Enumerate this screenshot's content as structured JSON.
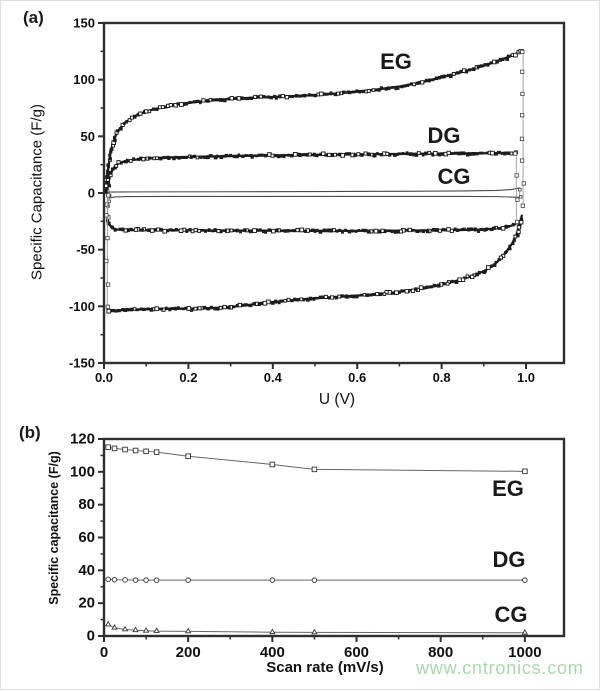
{
  "panel_a": {
    "tag": "(a)",
    "ylabel": "Specific Capacitance (F/g)",
    "xlabel": "U (V)"
  },
  "panel_b": {
    "tag": "(b)",
    "ylabel": "Specific capacitance (F/g)",
    "xlabel": "Scan rate (mV/s)"
  },
  "watermark": {
    "text": "www.cntronics.com",
    "color": "#a9d7b0"
  },
  "chart_data": [
    {
      "type": "line",
      "panel": "a",
      "xlabel": "U (V)",
      "ylabel": "Specific Capacitance (F/g)",
      "xlim": [
        0,
        1.09
      ],
      "ylim": [
        -150,
        150
      ],
      "xticks": [
        0.0,
        0.2,
        0.4,
        0.6,
        0.8,
        1.0
      ],
      "xtick_labels": [
        "0.0",
        "0.2",
        "0.4",
        "0.6",
        "0.8",
        "1.0"
      ],
      "xminor": [
        0.1,
        0.3,
        0.5,
        0.7,
        0.9
      ],
      "yticks": [
        -150,
        -100,
        -50,
        0,
        50,
        100,
        150
      ],
      "ytick_labels": [
        "-150",
        "-100",
        "-50",
        "0",
        "50",
        "100",
        "150"
      ],
      "yminor": [
        -125,
        -75,
        -25,
        25,
        75,
        125
      ],
      "series": [
        {
          "name": "CG",
          "style": "thin",
          "upper": [
            [
              0.01,
              0.8
            ],
            [
              0.1,
              1
            ],
            [
              0.3,
              1.1
            ],
            [
              0.5,
              1.3
            ],
            [
              0.7,
              1.5
            ],
            [
              0.85,
              1.8
            ],
            [
              0.93,
              2.3
            ],
            [
              0.965,
              3
            ],
            [
              0.985,
              4.5
            ]
          ],
          "lower": [
            [
              0.983,
              -3.8
            ],
            [
              0.93,
              -3.2
            ],
            [
              0.85,
              -3
            ],
            [
              0.7,
              -3
            ],
            [
              0.5,
              -3
            ],
            [
              0.3,
              -3
            ],
            [
              0.15,
              -3
            ],
            [
              0.06,
              -3.1
            ],
            [
              0.025,
              -3.5
            ],
            [
              0.013,
              -4.5
            ]
          ],
          "right_connector": {
            "x": 0.985,
            "values": [
              3,
              -3
            ]
          },
          "left_connector": {
            "x": 0.012,
            "values": [
              -2,
              -8,
              -12
            ]
          }
        },
        {
          "name": "DG",
          "style": "chain",
          "upper": [
            [
              0.008,
              4
            ],
            [
              0.011,
              10
            ],
            [
              0.015,
              16
            ],
            [
              0.02,
              20.5
            ],
            [
              0.027,
              24
            ],
            [
              0.036,
              26.5
            ],
            [
              0.05,
              28
            ],
            [
              0.07,
              29.2
            ],
            [
              0.09,
              30
            ],
            [
              0.12,
              30.8
            ],
            [
              0.16,
              31.4
            ],
            [
              0.2,
              31.8
            ],
            [
              0.25,
              32.2
            ],
            [
              0.3,
              32.6
            ],
            [
              0.36,
              33
            ],
            [
              0.42,
              33.3
            ],
            [
              0.5,
              33.7
            ],
            [
              0.58,
              34
            ],
            [
              0.66,
              34.3
            ],
            [
              0.74,
              34.6
            ],
            [
              0.82,
              34.8
            ],
            [
              0.9,
              35.1
            ],
            [
              0.95,
              35.3
            ],
            [
              0.977,
              35.5
            ]
          ],
          "lower": [
            [
              0.975,
              -27.5
            ],
            [
              0.96,
              -29.5
            ],
            [
              0.945,
              -30.7
            ],
            [
              0.92,
              -31.6
            ],
            [
              0.89,
              -32.2
            ],
            [
              0.85,
              -32.6
            ],
            [
              0.8,
              -32.9
            ],
            [
              0.74,
              -33.1
            ],
            [
              0.66,
              -33.3
            ],
            [
              0.58,
              -33.4
            ],
            [
              0.5,
              -33.4
            ],
            [
              0.42,
              -33.3
            ],
            [
              0.34,
              -33.2
            ],
            [
              0.26,
              -33.1
            ],
            [
              0.19,
              -33
            ],
            [
              0.13,
              -32.9
            ],
            [
              0.08,
              -32.8
            ],
            [
              0.05,
              -32.6
            ],
            [
              0.03,
              -32.2
            ],
            [
              0.02,
              -31
            ],
            [
              0.013,
              -28
            ],
            [
              0.009,
              -24
            ]
          ],
          "right_connector": {
            "x": 0.977,
            "values": [
              35,
              15,
              -5,
              -25
            ]
          },
          "left_connector": {
            "x": 0.009,
            "values": [
              -22,
              -10,
              2
            ]
          }
        },
        {
          "name": "EG",
          "style": "chain",
          "upper": [
            [
              0.005,
              0
            ],
            [
              0.007,
              10
            ],
            [
              0.01,
              22
            ],
            [
              0.014,
              33
            ],
            [
              0.02,
              43
            ],
            [
              0.028,
              51
            ],
            [
              0.038,
              57
            ],
            [
              0.05,
              62
            ],
            [
              0.065,
              66
            ],
            [
              0.08,
              69
            ],
            [
              0.1,
              72
            ],
            [
              0.125,
              74.5
            ],
            [
              0.15,
              76.5
            ],
            [
              0.18,
              78.5
            ],
            [
              0.21,
              80
            ],
            [
              0.25,
              81.5
            ],
            [
              0.3,
              83
            ],
            [
              0.35,
              84
            ],
            [
              0.4,
              84.7
            ],
            [
              0.45,
              85.5
            ],
            [
              0.5,
              86.5
            ],
            [
              0.55,
              87.8
            ],
            [
              0.6,
              89.5
            ],
            [
              0.65,
              91.5
            ],
            [
              0.7,
              94
            ],
            [
              0.75,
              97.5
            ],
            [
              0.8,
              102
            ],
            [
              0.85,
              107
            ],
            [
              0.88,
              110
            ],
            [
              0.91,
              113.5
            ],
            [
              0.94,
              117.5
            ],
            [
              0.965,
              121
            ],
            [
              0.98,
              123.5
            ],
            [
              0.993,
              126
            ]
          ],
          "lower": [
            [
              0.99,
              -20
            ],
            [
              0.985,
              -28
            ],
            [
              0.978,
              -36
            ],
            [
              0.968,
              -44
            ],
            [
              0.955,
              -51
            ],
            [
              0.94,
              -58
            ],
            [
              0.92,
              -64.5
            ],
            [
              0.9,
              -69
            ],
            [
              0.87,
              -73.5
            ],
            [
              0.84,
              -77
            ],
            [
              0.8,
              -81
            ],
            [
              0.76,
              -84
            ],
            [
              0.72,
              -86
            ],
            [
              0.68,
              -88
            ],
            [
              0.64,
              -89.5
            ],
            [
              0.6,
              -90.5
            ],
            [
              0.55,
              -91.8
            ],
            [
              0.5,
              -93
            ],
            [
              0.46,
              -94
            ],
            [
              0.42,
              -95.5
            ],
            [
              0.38,
              -97
            ],
            [
              0.34,
              -99
            ],
            [
              0.3,
              -100.5
            ],
            [
              0.27,
              -101.3
            ],
            [
              0.24,
              -101.8
            ],
            [
              0.2,
              -102
            ],
            [
              0.16,
              -102.2
            ],
            [
              0.12,
              -102.4
            ],
            [
              0.08,
              -102.8
            ],
            [
              0.05,
              -103.2
            ],
            [
              0.03,
              -103.6
            ],
            [
              0.018,
              -104
            ],
            [
              0.01,
              -104
            ]
          ],
          "right_connector": {
            "x": 0.993,
            "values": [
              125,
              107,
              88,
              68,
              48,
              28,
              8,
              -12
            ]
          },
          "left_connector": {
            "x": 0.008,
            "values": [
              -100,
              -80,
              -60,
              -40,
              -20,
              -2
            ]
          }
        }
      ]
    },
    {
      "type": "line",
      "panel": "b",
      "xlabel": "Scan rate (mV/s)",
      "ylabel": "Specific capacitance (F/g)",
      "xlim": [
        0,
        1093
      ],
      "ylim": [
        0,
        120
      ],
      "xticks": [
        0,
        200,
        400,
        600,
        800,
        1000
      ],
      "xtick_labels": [
        "0",
        "200",
        "400",
        "600",
        "800",
        "1000"
      ],
      "xminor": [
        100,
        300,
        500,
        700,
        900
      ],
      "yticks": [
        0,
        20,
        40,
        60,
        80,
        100,
        120
      ],
      "ytick_labels": [
        "0",
        "20",
        "40",
        "60",
        "80",
        "100",
        "120"
      ],
      "yminor": [
        10,
        30,
        50,
        70,
        90,
        110
      ],
      "series": [
        {
          "name": "EG",
          "marker": "square",
          "x": [
            10,
            25,
            50,
            75,
            100,
            125,
            200,
            400,
            500,
            1000
          ],
          "y": [
            115,
            114.3,
            113.6,
            113,
            112.5,
            112,
            109.5,
            104.5,
            101.5,
            100.3
          ]
        },
        {
          "name": "DG",
          "marker": "circle",
          "x": [
            10,
            25,
            50,
            75,
            100,
            125,
            200,
            400,
            500,
            1000
          ],
          "y": [
            34.5,
            34.3,
            34.2,
            34,
            34,
            34,
            34,
            34,
            34,
            34
          ]
        },
        {
          "name": "CG",
          "marker": "triangle",
          "x": [
            10,
            25,
            50,
            75,
            100,
            125,
            200,
            400,
            500,
            1000
          ],
          "y": [
            7,
            5,
            4,
            3.5,
            3.2,
            3,
            2.8,
            2.3,
            2.2,
            2
          ]
        }
      ]
    }
  ]
}
